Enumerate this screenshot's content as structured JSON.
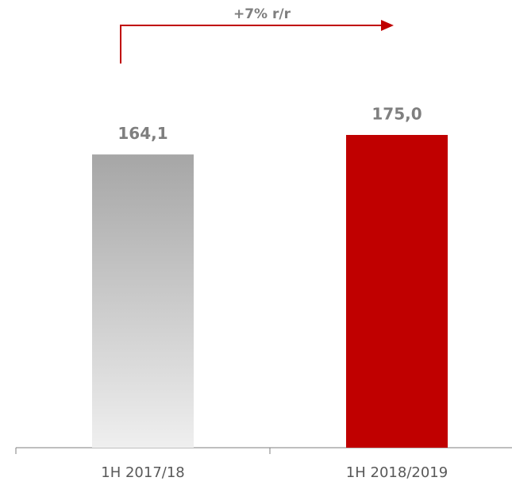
{
  "chart_data": {
    "type": "bar",
    "annotation": "+7% r/r",
    "categories": [
      "1H 2017/18",
      "1H 2018/2019"
    ],
    "values": [
      164.1,
      175.0
    ],
    "value_labels": [
      "164,1",
      "175,0"
    ],
    "colors": [
      "#a6a6a6",
      "#c00000"
    ],
    "ylim": [
      0,
      175
    ]
  }
}
